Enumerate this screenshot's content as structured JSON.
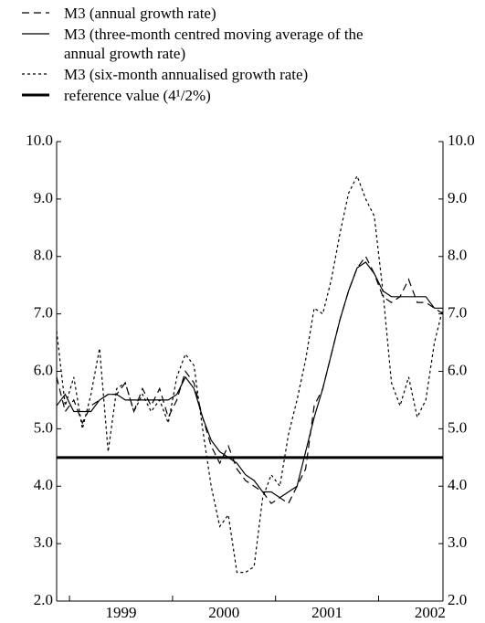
{
  "chart_data": {
    "type": "line",
    "categories": [
      null,
      null,
      null,
      null,
      null,
      null,
      null,
      "1999",
      null,
      null,
      null,
      null,
      null,
      null,
      null,
      null,
      null,
      null,
      null,
      "2000",
      null,
      null,
      null,
      null,
      null,
      null,
      null,
      null,
      null,
      null,
      null,
      "2001",
      null,
      null,
      null,
      null,
      null,
      null,
      null,
      null,
      null,
      null,
      null,
      "2002",
      null,
      null
    ],
    "series": [
      {
        "name": "M3 (annual growth rate)",
        "color": "#000000",
        "dash": "dashed",
        "values": [
          5.9,
          5.3,
          5.5,
          5.1,
          5.4,
          5.5,
          5.6,
          5.6,
          5.8,
          5.3,
          5.7,
          5.4,
          5.7,
          5.2,
          5.5,
          6.0,
          5.8,
          5.2,
          4.7,
          4.4,
          4.7,
          4.3,
          4.1,
          4.0,
          3.9,
          3.7,
          3.8,
          3.7,
          4.0,
          4.3,
          5.4,
          5.7,
          6.3,
          6.9,
          7.4,
          7.8,
          8.0,
          7.7,
          7.3,
          7.2,
          7.3,
          7.6,
          7.2,
          7.2,
          7.1,
          7.0
        ]
      },
      {
        "name": "M3 (three-month centred moving average of the annual growth rate)",
        "color": "#000000",
        "dash": "solid",
        "values": [
          5.4,
          5.6,
          5.3,
          5.3,
          5.3,
          5.5,
          5.6,
          5.6,
          5.5,
          5.5,
          5.5,
          5.5,
          5.5,
          5.5,
          5.6,
          5.9,
          5.7,
          5.2,
          4.8,
          4.6,
          4.5,
          4.4,
          4.2,
          4.1,
          3.9,
          3.9,
          3.8,
          3.9,
          4.0,
          4.6,
          5.2,
          5.7,
          6.3,
          6.9,
          7.4,
          7.8,
          7.9,
          7.7,
          7.4,
          7.3,
          7.3,
          7.3,
          7.3,
          7.3,
          7.1,
          7.1
        ]
      },
      {
        "name": "M3 (six-month annualised growth rate)",
        "color": "#000000",
        "dash": "dotted",
        "values": [
          6.7,
          5.4,
          5.9,
          5.0,
          5.6,
          6.4,
          4.6,
          5.7,
          5.8,
          5.3,
          5.6,
          5.3,
          5.5,
          5.1,
          5.9,
          6.3,
          6.1,
          5.0,
          4.0,
          3.3,
          3.5,
          2.5,
          2.5,
          2.6,
          3.8,
          4.2,
          4.0,
          4.9,
          5.5,
          6.2,
          7.1,
          7.0,
          7.6,
          8.4,
          9.1,
          9.4,
          9.0,
          8.7,
          7.4,
          5.8,
          5.4,
          5.9,
          5.2,
          5.5,
          6.5,
          7.1
        ]
      }
    ],
    "reference": {
      "name": "reference value (4¹/2%)",
      "value": 4.5,
      "color": "#000000"
    },
    "ylim": [
      2,
      10
    ],
    "yticks": [
      {
        "value": 2,
        "label": "2.0"
      },
      {
        "value": 3,
        "label": "3.0"
      },
      {
        "value": 4,
        "label": "4.0"
      },
      {
        "value": 5,
        "label": "5.0"
      },
      {
        "value": 6,
        "label": "6.0"
      },
      {
        "value": 7,
        "label": "7.0"
      },
      {
        "value": 8,
        "label": "8.0"
      },
      {
        "value": 9,
        "label": "9.0"
      },
      {
        "value": 10,
        "label": "10.0"
      }
    ],
    "right_axis": true,
    "grid": false
  }
}
